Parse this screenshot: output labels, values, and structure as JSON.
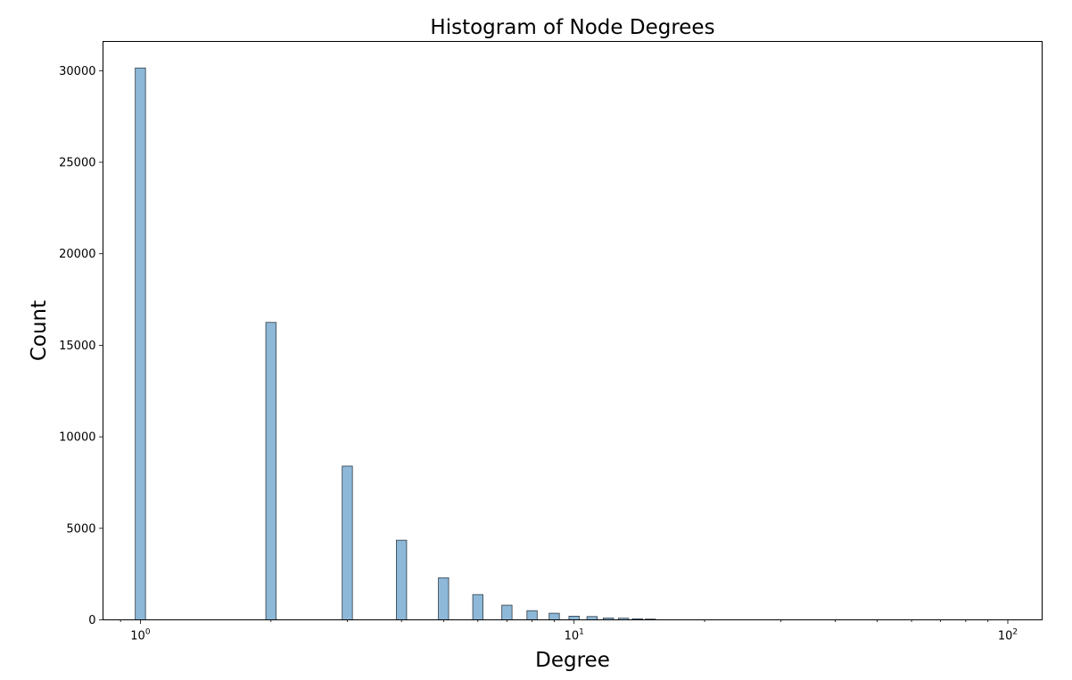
{
  "chart_data": {
    "type": "bar",
    "title": "Histogram of Node Degrees",
    "xlabel": "Degree",
    "ylabel": "Count",
    "x_scale": "log",
    "xlim": [
      0.82,
      120
    ],
    "ylim": [
      0,
      31600
    ],
    "x_ticks": [
      {
        "value": 1,
        "base": "10",
        "exp": "0"
      },
      {
        "value": 10,
        "base": "10",
        "exp": "1"
      },
      {
        "value": 100,
        "base": "10",
        "exp": "2"
      }
    ],
    "y_ticks": [
      "0",
      "5000",
      "10000",
      "15000",
      "20000",
      "25000",
      "30000"
    ],
    "grid": false,
    "bar_color": "#8db8d8",
    "edge_color": "#2f3b45",
    "series": [
      {
        "x": [
          1,
          2,
          3,
          4,
          5,
          6,
          7,
          8,
          9,
          10,
          11,
          12,
          13,
          14,
          15
        ],
        "values": [
          30150,
          16250,
          8400,
          4350,
          2300,
          1380,
          800,
          500,
          360,
          200,
          180,
          100,
          90,
          60,
          40
        ]
      }
    ]
  }
}
